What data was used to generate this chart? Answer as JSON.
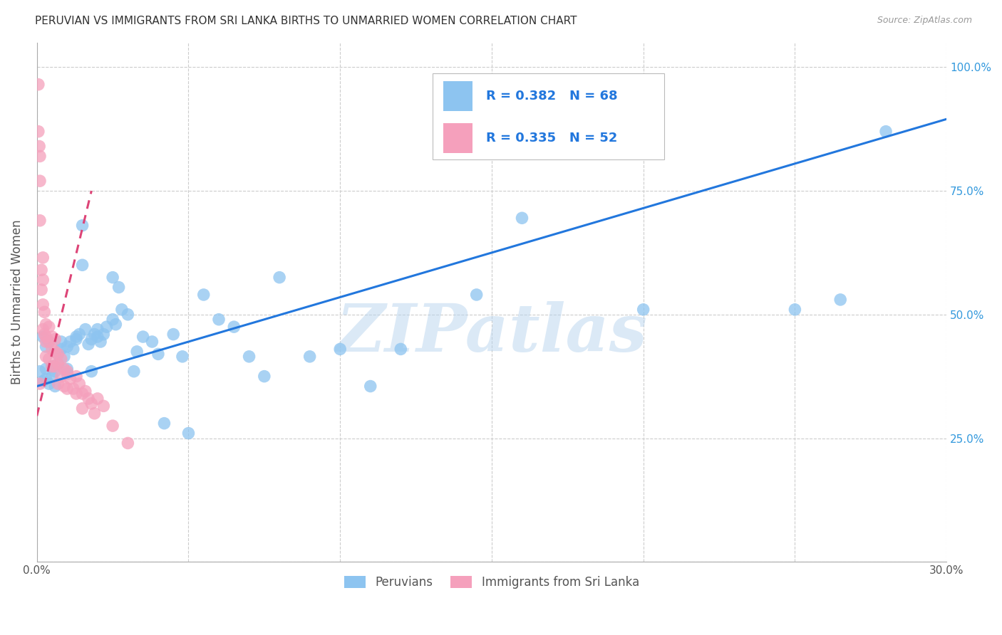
{
  "title": "PERUVIAN VS IMMIGRANTS FROM SRI LANKA BIRTHS TO UNMARRIED WOMEN CORRELATION CHART",
  "source": "Source: ZipAtlas.com",
  "ylabel": "Births to Unmarried Women",
  "xlim": [
    0.0,
    0.3
  ],
  "ylim": [
    0.0,
    1.05
  ],
  "xticks": [
    0.0,
    0.05,
    0.1,
    0.15,
    0.2,
    0.25,
    0.3
  ],
  "xtick_labels": [
    "0.0%",
    "",
    "",
    "",
    "",
    "",
    "30.0%"
  ],
  "yticks": [
    0.0,
    0.25,
    0.5,
    0.75,
    1.0
  ],
  "ytick_labels_right": [
    "",
    "25.0%",
    "50.0%",
    "75.0%",
    "100.0%"
  ],
  "blue_color": "#8DC4F0",
  "pink_color": "#F5A0BC",
  "blue_line_color": "#2277DD",
  "pink_line_color": "#DD4477",
  "watermark": "ZIPatlas",
  "blue_x": [
    0.001,
    0.002,
    0.003,
    0.003,
    0.004,
    0.005,
    0.005,
    0.006,
    0.007,
    0.007,
    0.008,
    0.009,
    0.01,
    0.01,
    0.011,
    0.012,
    0.013,
    0.014,
    0.015,
    0.015,
    0.016,
    0.017,
    0.018,
    0.019,
    0.02,
    0.021,
    0.022,
    0.023,
    0.025,
    0.026,
    0.027,
    0.028,
    0.03,
    0.032,
    0.033,
    0.035,
    0.038,
    0.04,
    0.042,
    0.045,
    0.048,
    0.05,
    0.055,
    0.06,
    0.065,
    0.07,
    0.075,
    0.08,
    0.09,
    0.1,
    0.11,
    0.12,
    0.145,
    0.16,
    0.2,
    0.25,
    0.265,
    0.28,
    0.002,
    0.003,
    0.004,
    0.006,
    0.008,
    0.01,
    0.013,
    0.018,
    0.02,
    0.025
  ],
  "blue_y": [
    0.385,
    0.365,
    0.37,
    0.39,
    0.36,
    0.395,
    0.375,
    0.355,
    0.42,
    0.4,
    0.43,
    0.415,
    0.435,
    0.39,
    0.445,
    0.43,
    0.455,
    0.46,
    0.68,
    0.6,
    0.47,
    0.44,
    0.45,
    0.46,
    0.455,
    0.445,
    0.46,
    0.475,
    0.575,
    0.48,
    0.555,
    0.51,
    0.5,
    0.385,
    0.425,
    0.455,
    0.445,
    0.42,
    0.28,
    0.46,
    0.415,
    0.26,
    0.54,
    0.49,
    0.475,
    0.415,
    0.375,
    0.575,
    0.415,
    0.43,
    0.355,
    0.43,
    0.54,
    0.695,
    0.51,
    0.51,
    0.53,
    0.87,
    0.455,
    0.435,
    0.445,
    0.385,
    0.445,
    0.38,
    0.45,
    0.385,
    0.47,
    0.49
  ],
  "pink_x": [
    0.0005,
    0.0005,
    0.0008,
    0.001,
    0.001,
    0.001,
    0.001,
    0.0015,
    0.0015,
    0.002,
    0.002,
    0.002,
    0.002,
    0.0025,
    0.0025,
    0.003,
    0.003,
    0.003,
    0.003,
    0.004,
    0.004,
    0.004,
    0.005,
    0.005,
    0.005,
    0.006,
    0.006,
    0.006,
    0.007,
    0.007,
    0.007,
    0.008,
    0.008,
    0.009,
    0.009,
    0.01,
    0.01,
    0.011,
    0.012,
    0.013,
    0.013,
    0.014,
    0.015,
    0.015,
    0.016,
    0.017,
    0.018,
    0.019,
    0.02,
    0.022,
    0.025,
    0.03
  ],
  "pink_y": [
    0.965,
    0.87,
    0.84,
    0.82,
    0.77,
    0.69,
    0.36,
    0.59,
    0.55,
    0.615,
    0.57,
    0.52,
    0.47,
    0.505,
    0.46,
    0.48,
    0.455,
    0.445,
    0.415,
    0.475,
    0.445,
    0.41,
    0.455,
    0.43,
    0.395,
    0.45,
    0.425,
    0.395,
    0.42,
    0.4,
    0.36,
    0.41,
    0.375,
    0.39,
    0.355,
    0.385,
    0.35,
    0.37,
    0.35,
    0.375,
    0.34,
    0.36,
    0.34,
    0.31,
    0.345,
    0.33,
    0.32,
    0.3,
    0.33,
    0.315,
    0.275,
    0.24
  ]
}
